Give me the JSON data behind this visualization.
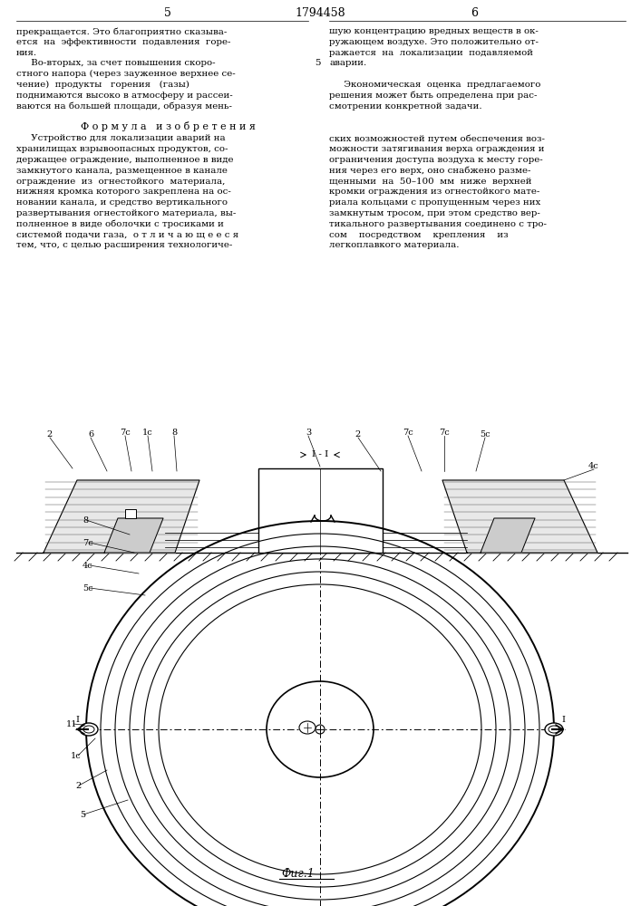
{
  "page_number_left": "5",
  "page_number_center": "1794458",
  "page_number_right": "6",
  "background_color": "#ffffff",
  "text_color": "#000000",
  "left_column_text": [
    "прекращается. Это благоприятно сказыва-",
    "ется  на  эффективности  подавления  горе-",
    "ния.",
    "     Во-вторых, за счет повышения скоро-",
    "стного напора (через зауженное верхнее се-",
    "чение)  продукты   горения   (газы)",
    "поднимаются высоко в атмосферу и рассеи-",
    "ваются на большей площади, образуя мень-"
  ],
  "right_column_text": [
    "шую концентрацию вредных веществ в ок-",
    "ружающем воздухе. Это положительно от-",
    "ражается  на  локализации  подавляемой",
    "аварии.",
    "",
    "     Экономическая  оценка  предлагаемого",
    "решения может быть определена при рас-",
    "смотрении конкретной задачи."
  ],
  "formula_header": "Ф о р м у л а   и з о б р е т е н и я",
  "formula_left": [
    "     Устройство для локализации аварий на",
    "хранилищах взрывоопасных продуктов, со-",
    "держащее ограждение, выполненное в виде",
    "замкнутого канала, размещенное в канале",
    "ограждение  из  огнестойкого  материала,",
    "нижняя кромка которого закреплена на ос-",
    "новании канала, и средство вертикального",
    "развертывания огнестойкого материала, вы-",
    "полненное в виде оболочки с тросиками и",
    "системой подачи газа,  о т л и ч а ю щ е е с я",
    "тем, что, с целью расширения технологиче-"
  ],
  "formula_right": [
    "ских возможностей путем обеспечения воз-",
    "можности затягивания верха ограждения и",
    "ограничения доступа воздуха к месту горе-",
    "ния через его верх, оно снабжено разме-",
    "щенными  на  50–100  мм  ниже  верхней",
    "кромки ограждения из огнестойкого мате-",
    "риала кольцами с пропущенным через них",
    "замкнутым тросом, при этом средство вер-",
    "тикального развертывания соединено с тро-",
    "сом    посредством    крепления    из",
    "легкоплавкого материала."
  ],
  "fig_label": "Фиг.1",
  "num5_line_marker": 5
}
